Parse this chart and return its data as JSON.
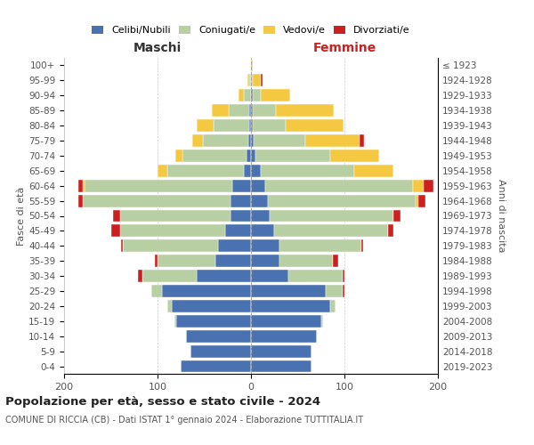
{
  "age_groups": [
    "100+",
    "95-99",
    "90-94",
    "85-89",
    "80-84",
    "75-79",
    "70-74",
    "65-69",
    "60-64",
    "55-59",
    "50-54",
    "45-49",
    "40-44",
    "35-39",
    "30-34",
    "25-29",
    "20-24",
    "15-19",
    "10-14",
    "5-9",
    "0-4"
  ],
  "birth_years": [
    "≤ 1923",
    "1924-1928",
    "1929-1933",
    "1934-1938",
    "1939-1943",
    "1944-1948",
    "1949-1953",
    "1954-1958",
    "1959-1963",
    "1964-1968",
    "1969-1973",
    "1974-1978",
    "1979-1983",
    "1984-1988",
    "1989-1993",
    "1994-1998",
    "1999-2003",
    "2004-2008",
    "2009-2013",
    "2014-2018",
    "2019-2023"
  ],
  "colors": {
    "celibi": "#4a72b0",
    "coniugati": "#b8cfa4",
    "vedovi": "#f5c842",
    "divorziati": "#cc2020"
  },
  "maschi": {
    "celibi": [
      0,
      0,
      0,
      2,
      2,
      3,
      5,
      8,
      20,
      22,
      22,
      28,
      35,
      38,
      58,
      95,
      85,
      80,
      70,
      65,
      75
    ],
    "coniugati": [
      0,
      2,
      8,
      22,
      38,
      48,
      68,
      82,
      158,
      158,
      118,
      112,
      102,
      62,
      58,
      12,
      5,
      2,
      0,
      0,
      0
    ],
    "vedovi": [
      0,
      2,
      5,
      18,
      18,
      12,
      8,
      10,
      2,
      0,
      0,
      0,
      0,
      0,
      0,
      0,
      0,
      0,
      0,
      0,
      0
    ],
    "divorziati": [
      0,
      0,
      0,
      0,
      0,
      0,
      0,
      0,
      5,
      5,
      8,
      10,
      2,
      3,
      5,
      0,
      0,
      0,
      0,
      0,
      0
    ]
  },
  "femmine": {
    "celibi": [
      0,
      0,
      2,
      2,
      2,
      3,
      5,
      10,
      15,
      18,
      20,
      25,
      30,
      30,
      40,
      80,
      85,
      75,
      70,
      65,
      65
    ],
    "coniugati": [
      0,
      2,
      8,
      25,
      35,
      55,
      80,
      100,
      158,
      158,
      132,
      122,
      88,
      58,
      58,
      18,
      5,
      2,
      0,
      0,
      0
    ],
    "vedovi": [
      2,
      8,
      32,
      62,
      62,
      58,
      52,
      42,
      12,
      3,
      0,
      0,
      0,
      0,
      0,
      0,
      0,
      0,
      0,
      0,
      0
    ],
    "divorziati": [
      0,
      2,
      0,
      0,
      0,
      5,
      0,
      0,
      10,
      8,
      8,
      5,
      2,
      5,
      2,
      2,
      0,
      0,
      0,
      0,
      0
    ]
  },
  "title": "Popolazione per età, sesso e stato civile - 2024",
  "subtitle": "COMUNE DI RICCIA (CB) - Dati ISTAT 1° gennaio 2024 - Elaborazione TUTTITALIA.IT",
  "xlabel_maschi": "Maschi",
  "xlabel_femmine": "Femmine",
  "ylabel_left": "Fasce di età",
  "ylabel_right": "Anni di nascita",
  "legend_labels": [
    "Celibi/Nubili",
    "Coniugati/e",
    "Vedovi/e",
    "Divorziati/e"
  ],
  "xlim": 200,
  "background_color": "#ffffff",
  "grid_color": "#cccccc"
}
